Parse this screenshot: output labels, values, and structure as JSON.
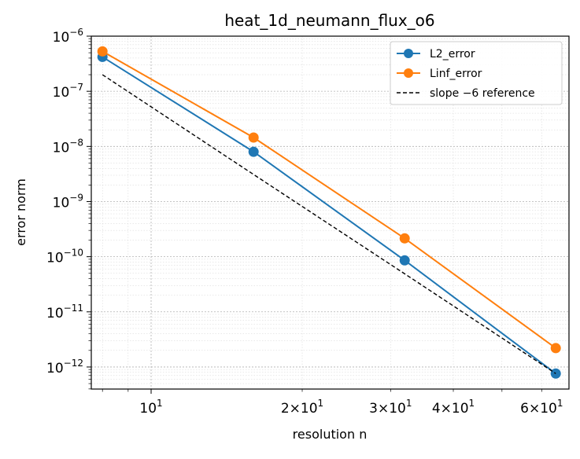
{
  "chart_data": {
    "type": "line",
    "title": "heat_1d_neumann_flux_o6",
    "xlabel": "resolution n",
    "ylabel": "error norm",
    "xscale": "log",
    "yscale": "log",
    "xlim": [
      7.6,
      68
    ],
    "ylim_exp": [
      -12.4,
      -6
    ],
    "grid": true,
    "legend_position": "top-right",
    "x": [
      8,
      16,
      32,
      64
    ],
    "series": [
      {
        "name": "L2_error",
        "values": [
          4.2e-07,
          8e-09,
          8.6e-11,
          7.6e-13
        ],
        "color": "#1f77b4",
        "marker": "circle",
        "style": "solid"
      },
      {
        "name": "Linf_error",
        "values": [
          5.3e-07,
          1.45e-08,
          2.15e-10,
          2.2e-12
        ],
        "color": "#ff7f0e",
        "marker": "circle",
        "style": "solid"
      },
      {
        "name": "slope −6 reference",
        "values": [
          2e-07,
          3.1e-09,
          4.9e-11,
          7.6e-13
        ],
        "color": "#000000",
        "marker": "none",
        "style": "dashed"
      }
    ],
    "x_major_ticks": [
      {
        "value": 10,
        "label": "10",
        "exp": "1"
      }
    ],
    "x_minor_labels": [
      {
        "value": 20,
        "label": "2×10",
        "exp": "1"
      },
      {
        "value": 30,
        "label": "3×10",
        "exp": "1"
      },
      {
        "value": 40,
        "label": "4×10",
        "exp": "1"
      },
      {
        "value": 60,
        "label": "6×10",
        "exp": "1"
      }
    ],
    "y_ticks": [
      {
        "exp_value": -6,
        "label": "10",
        "exp": "−6"
      },
      {
        "exp_value": -7,
        "label": "10",
        "exp": "−7"
      },
      {
        "exp_value": -8,
        "label": "10",
        "exp": "−8"
      },
      {
        "exp_value": -9,
        "label": "10",
        "exp": "−9"
      },
      {
        "exp_value": -10,
        "label": "10",
        "exp": "−10"
      },
      {
        "exp_value": -11,
        "label": "10",
        "exp": "−11"
      },
      {
        "exp_value": -12,
        "label": "10",
        "exp": "−12"
      }
    ]
  }
}
